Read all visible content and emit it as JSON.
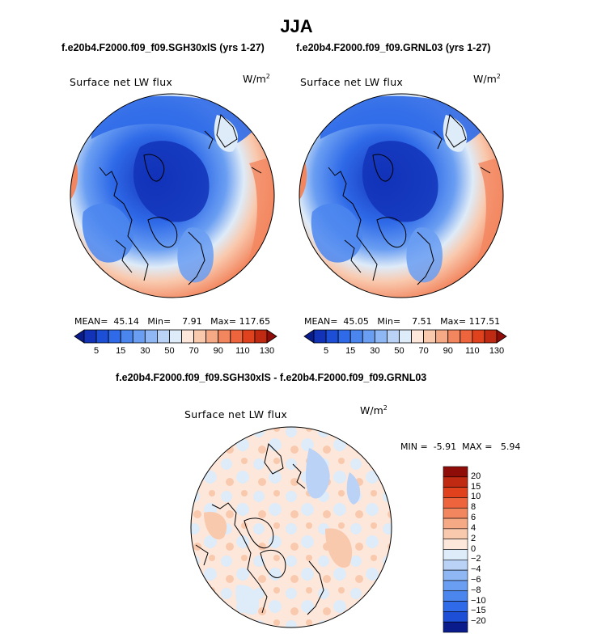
{
  "title": "JJA",
  "panel_left": {
    "case": "f.e20b4.F2000.f09_f09.SGH30xlS (yrs 1-27)",
    "variable": "Surface net LW flux",
    "units_base": "W/m",
    "units_exp": "2",
    "stats": {
      "mean_label": "MEAN=",
      "mean": "45.14",
      "min_label": "Min=",
      "min": "7.91",
      "max_label": "Max=",
      "max": "117.65"
    }
  },
  "panel_right": {
    "case": "f.e20b4.F2000.f09_f09.GRNL03 (yrs 1-27)",
    "variable": "Surface net LW flux",
    "units_base": "W/m",
    "units_exp": "2",
    "stats": {
      "mean_label": "MEAN=",
      "mean": "45.05",
      "min_label": "Min=",
      "min": "7.51",
      "max_label": "Max=",
      "max": "117.51"
    }
  },
  "colorbar_top": {
    "labels": [
      "5",
      "15",
      "30",
      "50",
      "70",
      "90",
      "110",
      "130"
    ],
    "colors": [
      "#0a1c8c",
      "#1233b8",
      "#1c4fd6",
      "#2f6ae8",
      "#4b86ee",
      "#6a9ef2",
      "#8fb7f4",
      "#b9d2f6",
      "#deebf8",
      "#fde7da",
      "#f9c9ae",
      "#f6a985",
      "#f2865f",
      "#ee643c",
      "#e0421e",
      "#c02a12",
      "#8e0d08"
    ]
  },
  "panel_diff": {
    "title": "f.e20b4.F2000.f09_f09.SGH30xlS - f.e20b4.F2000.f09_f09.GRNL03",
    "variable": "Surface net LW flux",
    "units_base": "W/m",
    "units_exp": "2",
    "minmax": {
      "min_label": "MIN =",
      "min": "-5.91",
      "max_label": "MAX =",
      "max": "5.94"
    },
    "colorbar": {
      "labels": [
        "20",
        "15",
        "10",
        "8",
        "6",
        "4",
        "2",
        "0",
        "-2",
        "-4",
        "-6",
        "-8",
        "-10",
        "-15",
        "-20"
      ],
      "colors": [
        "#8e0d08",
        "#c02a12",
        "#e0421e",
        "#ee643c",
        "#f2865f",
        "#f6a985",
        "#f9c9ae",
        "#fde7da",
        "#deebf8",
        "#b9d2f6",
        "#8fb7f4",
        "#6a9ef2",
        "#4b86ee",
        "#2f6ae8",
        "#1c4fd6",
        "#0a1c8c"
      ]
    }
  }
}
